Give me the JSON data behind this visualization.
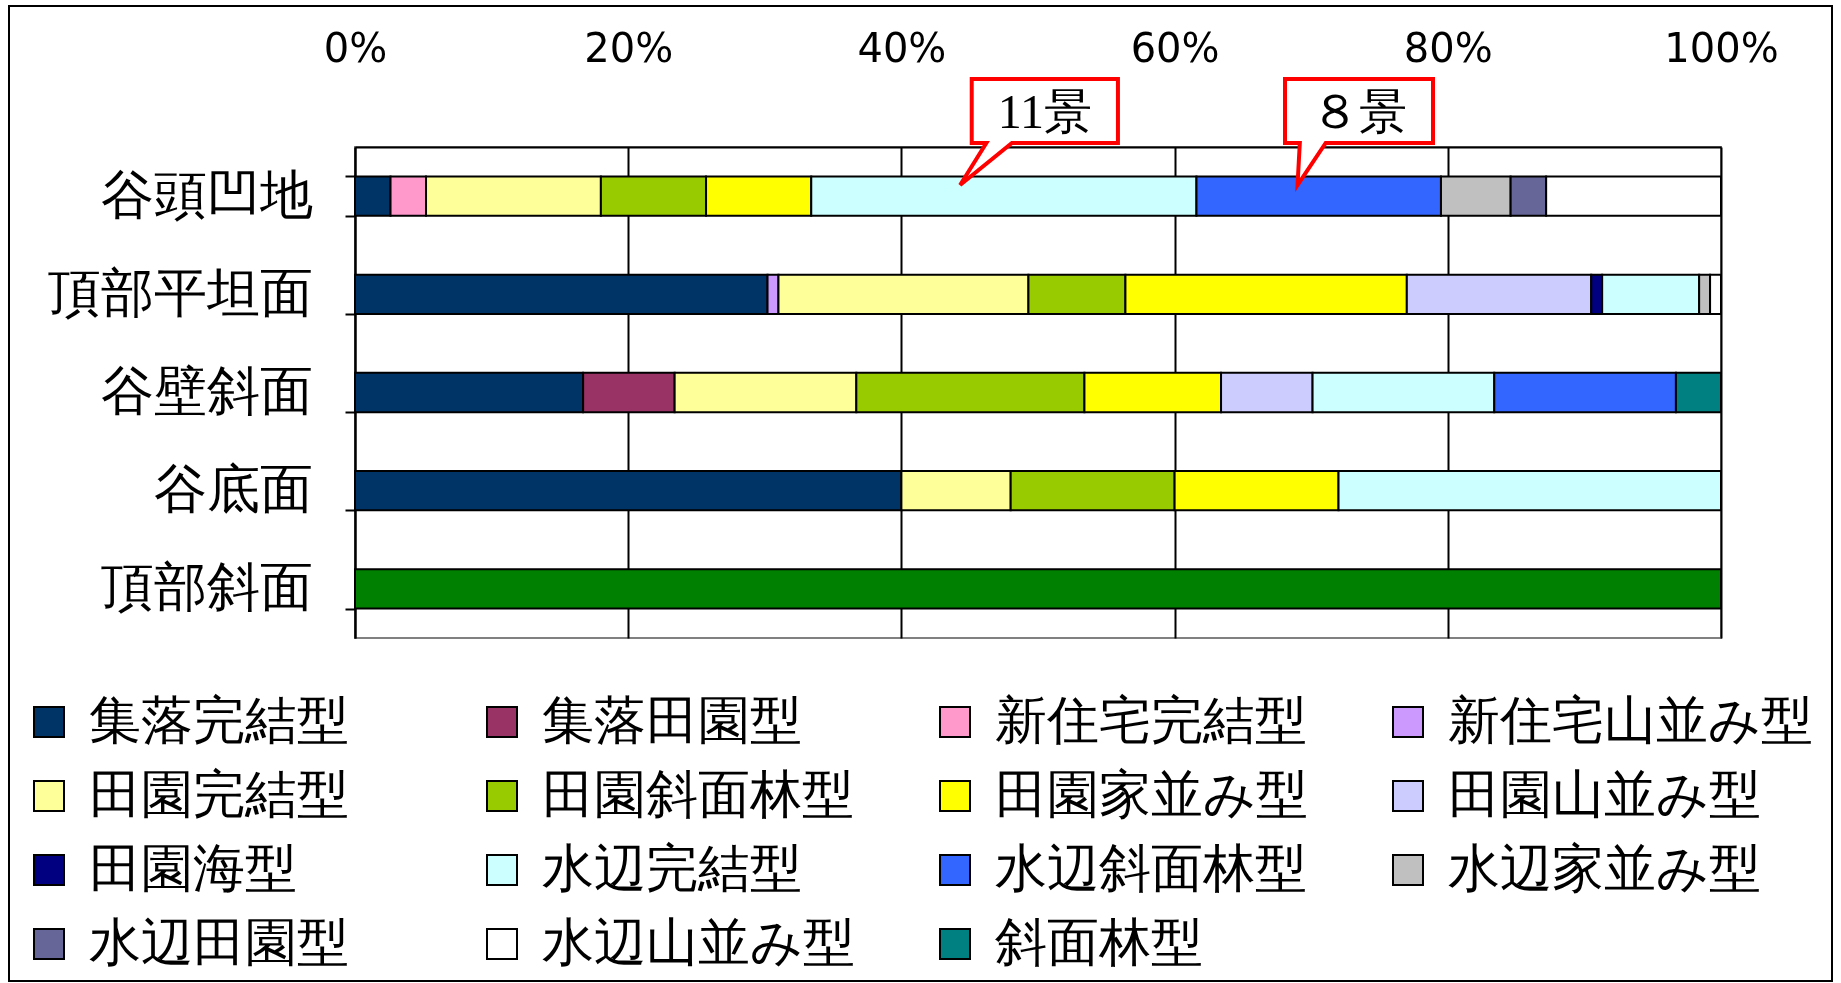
{
  "chart_data": {
    "type": "bar",
    "orientation": "horizontal",
    "stacked": true,
    "categories": [
      "谷頭凹地",
      "頂部平坦面",
      "谷壁斜面",
      "谷底面",
      "頂部斜面"
    ],
    "series": [
      {
        "name": "集落完結型",
        "color": "#003366",
        "values": [
          2.6,
          30.2,
          16.7,
          40,
          null
        ]
      },
      {
        "name": "集落田園型",
        "color": "#993366",
        "values": [
          null,
          null,
          6.7,
          null,
          null
        ]
      },
      {
        "name": "新住宅完結型",
        "color": "#ff99cc",
        "values": [
          2.6,
          null,
          null,
          null,
          null
        ]
      },
      {
        "name": "新住宅山並み型",
        "color": "#cc99ff",
        "values": [
          null,
          0.8,
          null,
          null,
          null
        ]
      },
      {
        "name": "田園完結型",
        "color": "#ffff99",
        "values": [
          12.8,
          18.3,
          13.3,
          8,
          null
        ]
      },
      {
        "name": "田園斜面林型",
        "color": "#99cc00",
        "values": [
          7.7,
          7.1,
          16.7,
          12,
          null
        ]
      },
      {
        "name": "田園家並み型",
        "color": "#ffff00",
        "values": [
          7.7,
          20.6,
          10,
          12,
          null
        ]
      },
      {
        "name": "田園山並み型",
        "color": "#ccccff",
        "values": [
          null,
          13.5,
          6.7,
          null,
          null
        ]
      },
      {
        "name": "田園海型",
        "color": "#000080",
        "values": [
          null,
          0.8,
          null,
          null,
          null
        ]
      },
      {
        "name": "水辺完結型",
        "color": "#ccffff",
        "values": [
          28.2,
          7.1,
          13.3,
          28,
          null
        ]
      },
      {
        "name": "水辺斜面林型",
        "color": "#3366ff",
        "values": [
          17.9,
          null,
          13.3,
          null,
          null
        ]
      },
      {
        "name": "水辺家並み型",
        "color": "#c0c0c0",
        "values": [
          5.1,
          0.8,
          null,
          null,
          null
        ]
      },
      {
        "name": "水辺田園型",
        "color": "#666699",
        "values": [
          2.6,
          null,
          null,
          null,
          null
        ]
      },
      {
        "name": "水辺山並み型",
        "color": "#ffffff",
        "values": [
          12.8,
          0.8,
          null,
          null,
          null
        ]
      },
      {
        "name": "斜面林型",
        "color": "#008080",
        "values": [
          null,
          null,
          3.3,
          null,
          null
        ]
      },
      {
        "color": "#008000",
        "values": [
          null,
          null,
          null,
          null,
          100
        ]
      }
    ],
    "xlim": [
      0,
      100
    ],
    "xticks": [
      {
        "value": 0,
        "label": "0%"
      },
      {
        "value": 20,
        "label": "20%"
      },
      {
        "value": 40,
        "label": "40%"
      },
      {
        "value": 60,
        "label": "60%"
      },
      {
        "value": 80,
        "label": "80%"
      },
      {
        "value": 100,
        "label": "100%"
      }
    ],
    "grid": "x",
    "legend": "bottom",
    "annotations": [
      "11景",
      "８景"
    ]
  }
}
